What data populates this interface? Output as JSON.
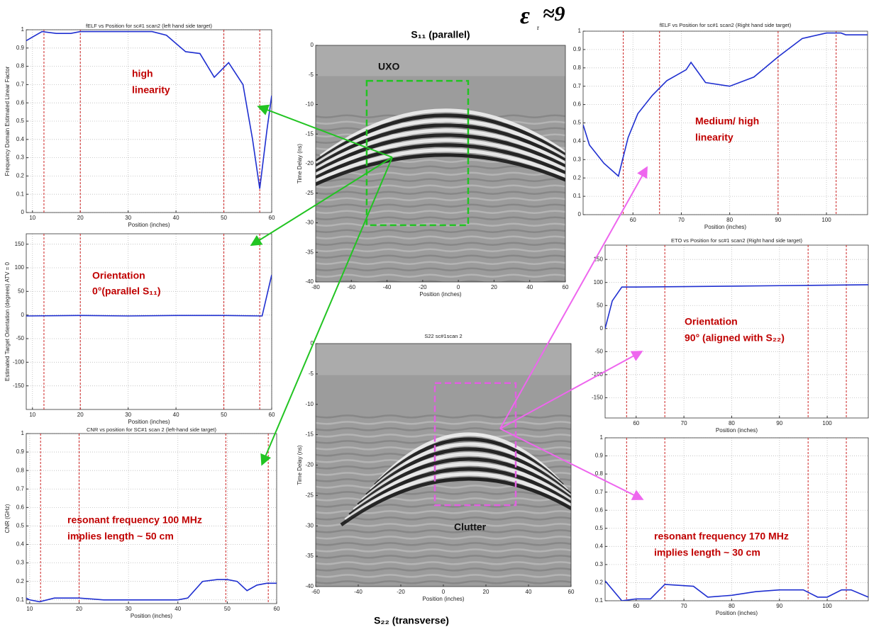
{
  "symbol": "ε",
  "subscript": "r",
  "relation": "≈9",
  "chart_data": [
    {
      "type": "line",
      "title": "fELF vs Position for sc#1 scan2 (left hand side target)",
      "x_label": "Position (inches)",
      "y_label": "Frequency Domain Estimated Linear Factor",
      "xlim": [
        8.7,
        60
      ],
      "ylim": [
        0,
        1
      ],
      "xticks": [
        10,
        20,
        30,
        40,
        50,
        60
      ],
      "yticks": [
        0,
        0.1,
        0.2,
        0.3,
        0.4,
        0.5,
        0.6,
        0.7,
        0.8,
        0.9,
        1
      ],
      "grid": true,
      "vlines": [
        12.4,
        20,
        50,
        57.5
      ],
      "vline_color": "#cc2222",
      "series": [
        {
          "color": "#1f2fd0",
          "x": [
            8.7,
            10,
            12,
            15,
            18,
            20,
            25,
            30,
            35,
            38,
            42,
            45,
            48,
            51,
            54,
            56,
            57.5,
            59,
            60
          ],
          "values": [
            0.94,
            0.96,
            0.99,
            0.98,
            0.98,
            0.99,
            0.99,
            0.99,
            0.99,
            0.97,
            0.88,
            0.87,
            0.74,
            0.82,
            0.7,
            0.4,
            0.13,
            0.45,
            0.64
          ]
        }
      ],
      "annotation": [
        "high",
        "linearity"
      ]
    },
    {
      "type": "line",
      "x_label": "Position (inches)",
      "y_label": "Estimated Target Orientation (degrees) ATV = 0",
      "xlim": [
        8.7,
        60
      ],
      "ylim": [
        -200,
        172
      ],
      "xticks": [
        10,
        20,
        30,
        40,
        50,
        60
      ],
      "yticks": [
        -150,
        -100,
        -50,
        0,
        50,
        100,
        150
      ],
      "grid": true,
      "vlines": [
        12.4,
        20,
        50,
        57.5
      ],
      "vline_color": "#cc2222",
      "series": [
        {
          "color": "#1f2fd0",
          "x": [
            8.7,
            20,
            30,
            40,
            50,
            58,
            60
          ],
          "values": [
            -2,
            -1,
            -2,
            -1,
            -1,
            -2,
            85
          ]
        }
      ],
      "annotation": [
        "Orientation",
        "0°(parallel S₁₁)"
      ]
    },
    {
      "type": "line",
      "title": "CNR vs position for SC#1 scan 2 (left-hand side target)",
      "x_label": "Position (inches)",
      "y_label": "CNR (GHz)",
      "xlim": [
        9.3,
        60
      ],
      "ylim": [
        0.08,
        1
      ],
      "xticks": [
        10,
        20,
        30,
        40,
        50,
        60
      ],
      "yticks": [
        0.1,
        0.2,
        0.3,
        0.4,
        0.5,
        0.6,
        0.7,
        0.8,
        0.9,
        1
      ],
      "grid": true,
      "vlines": [
        12.2,
        20,
        49.7,
        58.3
      ],
      "vline_color": "#cc2222",
      "series": [
        {
          "color": "#1f2fd0",
          "x": [
            9.3,
            10,
            12,
            15,
            20,
            25,
            30,
            35,
            40,
            42,
            45,
            48,
            50,
            52,
            54,
            56,
            58,
            60
          ],
          "values": [
            0.11,
            0.1,
            0.09,
            0.11,
            0.11,
            0.1,
            0.1,
            0.1,
            0.1,
            0.11,
            0.2,
            0.21,
            0.21,
            0.2,
            0.15,
            0.18,
            0.19,
            0.19
          ]
        }
      ],
      "annotation": [
        "resonant frequency 100 MHz",
        "implies length ~ 50 cm"
      ]
    },
    {
      "type": "image",
      "title": "S₁₁ (parallel)",
      "x_label": "Position (inches)",
      "y_label": "Time Delay (ns)",
      "xlim": [
        -80,
        60
      ],
      "ylim": [
        -40,
        0
      ],
      "xticks": [
        -80,
        -60,
        -40,
        -20,
        0,
        20,
        40,
        60
      ],
      "yticks": [
        -40,
        -35,
        -30,
        -25,
        -20,
        -15,
        -10,
        -5,
        0
      ],
      "box": {
        "label": "UXO",
        "color": "#22c422",
        "x": [
          -51.4,
          5.5
        ],
        "y": [
          -30.4,
          -6
        ]
      }
    },
    {
      "type": "image",
      "title": "S22 sc#1scan 2",
      "caption": "S₂₂ (transverse)",
      "x_label": "Position (inches)",
      "y_label": "Time Delay (ns)",
      "xlim": [
        -60,
        60
      ],
      "ylim": [
        -40,
        0
      ],
      "xticks": [
        -60,
        -40,
        -20,
        0,
        20,
        40,
        60
      ],
      "yticks": [
        -40,
        -35,
        -30,
        -25,
        -20,
        -15,
        -10,
        -5,
        0
      ],
      "box": {
        "label": "Clutter",
        "color": "#e060e0",
        "x": [
          -4,
          34
        ],
        "y": [
          -26.6,
          -6.5
        ]
      }
    },
    {
      "type": "line",
      "title": "fELF vs Position for sc#1 scan2 (Right hand side target)",
      "x_label": "Position (inches)",
      "xlim": [
        49.7,
        108.5
      ],
      "ylim": [
        0,
        1
      ],
      "xticks": [
        60,
        70,
        80,
        90,
        100
      ],
      "yticks": [
        0,
        0.1,
        0.2,
        0.3,
        0.4,
        0.5,
        0.6,
        0.7,
        0.8,
        0.9,
        1
      ],
      "grid": true,
      "vlines": [
        58,
        65.5,
        90,
        102
      ],
      "vline_color": "#cc2222",
      "series": [
        {
          "color": "#1f2fd0",
          "x": [
            49.7,
            51,
            54,
            57,
            59,
            61,
            64,
            67,
            71,
            72,
            75,
            80,
            85,
            90,
            95,
            100,
            103,
            104,
            108.5
          ],
          "values": [
            0.49,
            0.38,
            0.28,
            0.21,
            0.42,
            0.55,
            0.65,
            0.73,
            0.79,
            0.83,
            0.72,
            0.7,
            0.75,
            0.86,
            0.96,
            0.99,
            0.99,
            0.98,
            0.98
          ]
        }
      ],
      "annotation": [
        "Medium/ high",
        "linearity"
      ]
    },
    {
      "type": "line",
      "title": "ETO vs Position for sc#1 scan2 (Right hand side target)",
      "x_label": "Position (inches)",
      "xlim": [
        53.5,
        108.6
      ],
      "ylim": [
        -194,
        181
      ],
      "xticks": [
        60,
        70,
        80,
        90,
        100
      ],
      "yticks": [
        -150,
        -100,
        -50,
        0,
        50,
        100,
        150
      ],
      "grid": true,
      "vlines": [
        58,
        66,
        96,
        104
      ],
      "vline_color": "#cc2222",
      "series": [
        {
          "color": "#1f2fd0",
          "x": [
            53.5,
            55,
            57,
            60,
            70,
            80,
            90,
            100,
            108.6
          ],
          "values": [
            0,
            60,
            90,
            90,
            91,
            92,
            93,
            94,
            95
          ]
        }
      ],
      "annotation": [
        "Orientation",
        "90° (aligned with S₂₂)"
      ]
    },
    {
      "type": "line",
      "x_label": "Position (inches)",
      "xlim": [
        53.5,
        108.6
      ],
      "ylim": [
        0.1,
        1
      ],
      "xticks": [
        60,
        70,
        80,
        90,
        100
      ],
      "yticks": [
        0.1,
        0.2,
        0.3,
        0.4,
        0.5,
        0.6,
        0.7,
        0.8,
        0.9,
        1
      ],
      "grid": true,
      "vlines": [
        58,
        66,
        96,
        104
      ],
      "vline_color": "#cc2222",
      "series": [
        {
          "color": "#1f2fd0",
          "x": [
            53.5,
            57,
            60,
            63,
            66,
            72,
            75,
            80,
            85,
            90,
            95,
            98,
            100,
            103,
            105,
            108.6
          ],
          "values": [
            0.21,
            0.1,
            0.11,
            0.11,
            0.19,
            0.18,
            0.12,
            0.13,
            0.15,
            0.16,
            0.16,
            0.12,
            0.12,
            0.16,
            0.16,
            0.12
          ]
        }
      ],
      "annotation": [
        "resonant frequency 170 MHz",
        "implies length ~ 30 cm"
      ]
    }
  ]
}
